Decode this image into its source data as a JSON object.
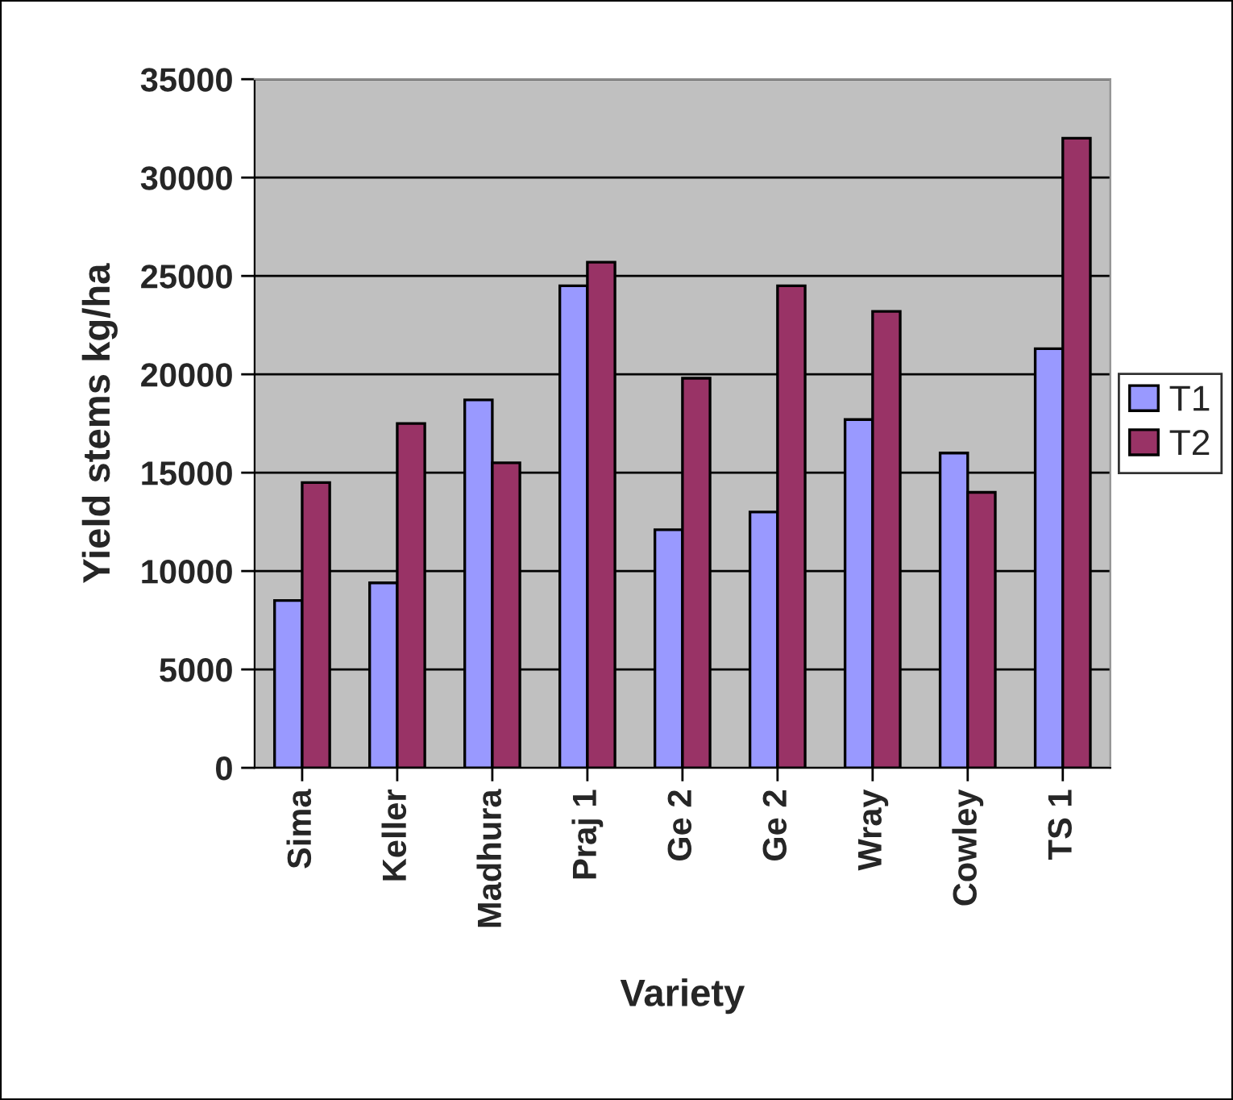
{
  "chart_data": {
    "type": "bar",
    "xlabel": "Variety",
    "ylabel": "Yield stems kg/ha",
    "categories": [
      "Sima",
      "Keller",
      "Madhura",
      "Praj 1",
      "Ge 2",
      "Ge 2",
      "Wray",
      "Cowley",
      "TS 1"
    ],
    "series": [
      {
        "name": "T1",
        "color": "#9999ff",
        "values": [
          8500,
          9400,
          18700,
          24500,
          12100,
          13000,
          17700,
          16000,
          21300
        ]
      },
      {
        "name": "T2",
        "color": "#993366",
        "values": [
          14500,
          17500,
          15500,
          25700,
          19800,
          24500,
          23200,
          14000,
          32000
        ]
      }
    ],
    "ylim": [
      0,
      35000
    ],
    "yticks": [
      0,
      5000,
      10000,
      15000,
      20000,
      25000,
      30000,
      35000
    ],
    "grid": "y",
    "legend": "right"
  }
}
